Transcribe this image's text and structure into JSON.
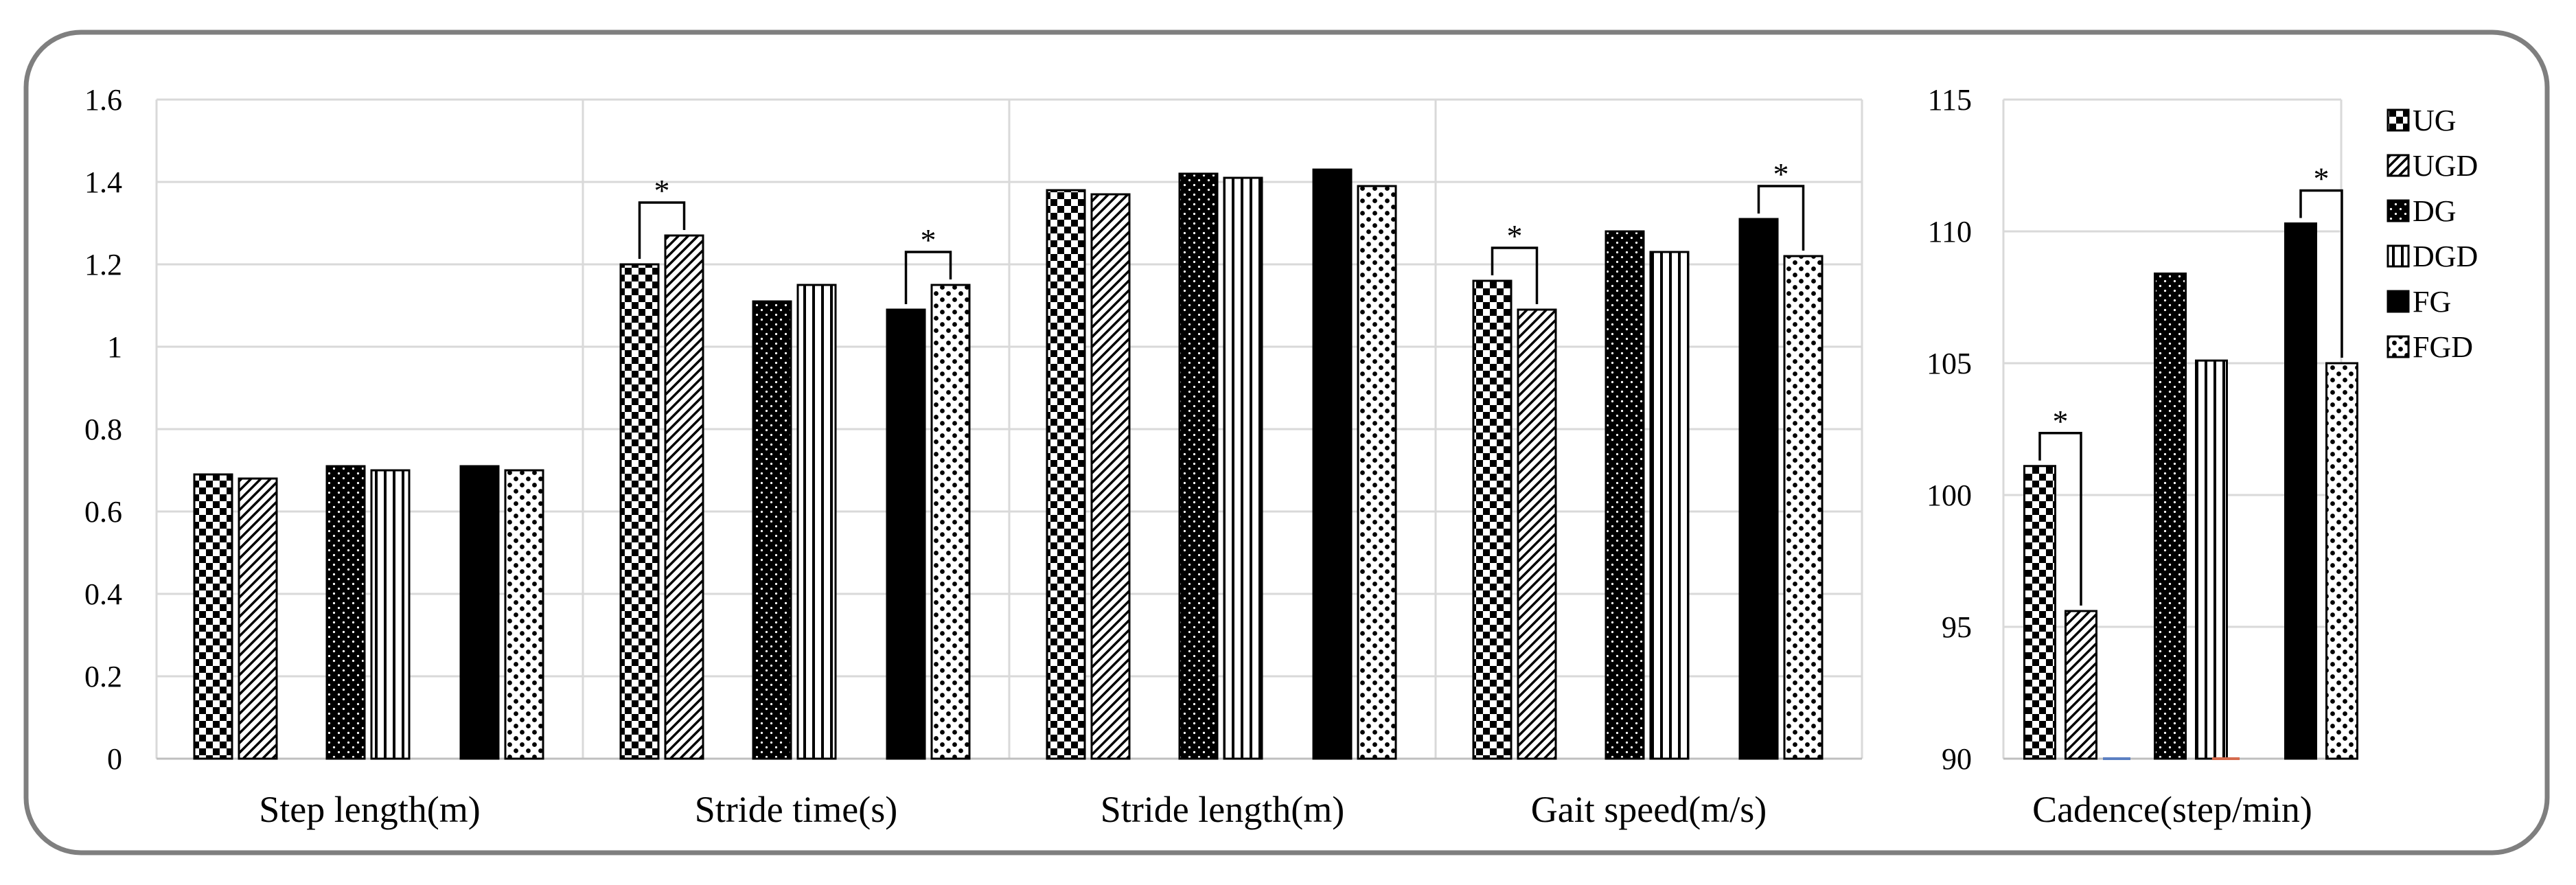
{
  "chart_data": [
    {
      "type": "bar",
      "categories": [
        "Step length(m)",
        "Stride time(s)",
        "Stride length(m)",
        "Gait speed(m/s)"
      ],
      "ylim": [
        0,
        1.6
      ],
      "yticks": [
        "0",
        "0.2",
        "0.4",
        "0.6",
        "0.8",
        "1",
        "1.2",
        "1.4",
        "1.6"
      ],
      "series": [
        {
          "name": "UG",
          "values": [
            0.69,
            1.2,
            1.38,
            1.16
          ]
        },
        {
          "name": "UGD",
          "values": [
            0.68,
            1.27,
            1.37,
            1.09
          ]
        },
        {
          "name": "DG",
          "values": [
            0.71,
            1.11,
            1.42,
            1.28
          ]
        },
        {
          "name": "DGD",
          "values": [
            0.7,
            1.15,
            1.41,
            1.23
          ]
        },
        {
          "name": "FG",
          "values": [
            0.71,
            1.09,
            1.43,
            1.31
          ]
        },
        {
          "name": "FGD",
          "values": [
            0.7,
            1.15,
            1.39,
            1.22
          ]
        }
      ],
      "significance": [
        {
          "category": 1,
          "pair": [
            "UG",
            "UGD"
          ],
          "label": "*"
        },
        {
          "category": 1,
          "pair": [
            "FG",
            "FGD"
          ],
          "label": "*"
        },
        {
          "category": 3,
          "pair": [
            "UG",
            "UGD"
          ],
          "label": "*"
        },
        {
          "category": 3,
          "pair": [
            "FG",
            "FGD"
          ],
          "label": "*"
        }
      ],
      "grid": true
    },
    {
      "type": "bar",
      "categories": [
        "Cadence(step/min)"
      ],
      "ylim": [
        90,
        115
      ],
      "yticks": [
        "90",
        "95",
        "100",
        "105",
        "110",
        "115"
      ],
      "series": [
        {
          "name": "UG",
          "values": [
            101.1
          ]
        },
        {
          "name": "UGD",
          "values": [
            95.6
          ]
        },
        {
          "name": "DG",
          "values": [
            108.4
          ]
        },
        {
          "name": "DGD",
          "values": [
            105.1
          ]
        },
        {
          "name": "FG",
          "values": [
            110.3
          ]
        },
        {
          "name": "FGD",
          "values": [
            105.0
          ]
        }
      ],
      "significance": [
        {
          "category": 0,
          "pair": [
            "UG",
            "UGD"
          ],
          "label": "*"
        },
        {
          "category": 0,
          "pair": [
            "FG",
            "FGD"
          ],
          "label": "*"
        }
      ],
      "grid": true
    }
  ],
  "legend": {
    "placement": "right",
    "items": [
      {
        "name": "UG",
        "pattern": "checker"
      },
      {
        "name": "UGD",
        "pattern": "diagonal"
      },
      {
        "name": "DG",
        "pattern": "dots-dark"
      },
      {
        "name": "DGD",
        "pattern": "vertical"
      },
      {
        "name": "FG",
        "pattern": "solid"
      },
      {
        "name": "FGD",
        "pattern": "dots-light"
      }
    ]
  }
}
